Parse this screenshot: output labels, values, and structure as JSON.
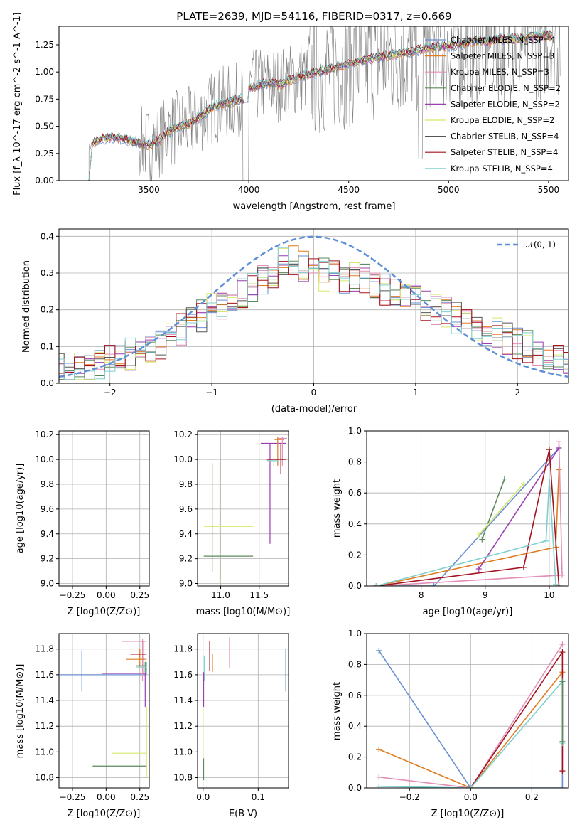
{
  "figure": {
    "title": "PLATE=2639, MJD=54116, FIBERID=0317, z=0.669"
  },
  "colors": {
    "chabrier_miles": "#6a8fd2",
    "salpeter_miles": "#e07b1f",
    "kroupa_miles": "#e28fb8",
    "chabrier_elodie": "#5c8a5c",
    "salpeter_elodie": "#9a3fb0",
    "kroupa_elodie": "#d6e86a",
    "chabrier_stelib": "#555555",
    "salpeter_stelib": "#a5121f",
    "kroupa_stelib": "#7fcfcf",
    "data_gray": "#808080",
    "normal_curve": "#5e8fd6"
  },
  "chart_data": [
    {
      "id": "spectrum",
      "type": "line",
      "xlabel": "wavelength [Angstrom, rest frame]",
      "ylabel": "Flux [f_λ 10^-17 erg cm^-2 s^-1 A^-1]",
      "xlim": [
        3050,
        5600
      ],
      "ylim": [
        0.0,
        1.42
      ],
      "xticks": [
        "3500",
        "4000",
        "4500",
        "5000",
        "5500"
      ],
      "yticks": [
        "0.00",
        "0.25",
        "0.50",
        "0.75",
        "1.00",
        "1.25"
      ],
      "grid": false,
      "legend_position": "top-right",
      "legend": [
        "Chabrier MILES, N_SSP=4",
        "Salpeter MILES, N_SSP=3",
        "Kroupa MILES, N_SSP=3",
        "Chabrier ELODIE, N_SSP=2",
        "Salpeter ELODIE, N_SSP=2",
        "Kroupa ELODIE, N_SSP=2",
        "Chabrier STELIB, N_SSP=4",
        "Salpeter STELIB, N_SSP=4",
        "Kroupa STELIB, N_SSP=4"
      ],
      "model_continuum": {
        "x": [
          3200,
          3220,
          3300,
          3380,
          3450,
          3500,
          3550,
          3600,
          3650,
          3700,
          3750,
          3800,
          3850,
          3900,
          3950,
          3990,
          4000,
          4050,
          4100,
          4150,
          4200,
          4250,
          4300,
          4350,
          4400,
          4450,
          4500,
          4550,
          4600,
          4650,
          4700,
          4750,
          4800,
          4850,
          4900,
          4950,
          5000,
          5050,
          5100,
          5150,
          5200,
          5250,
          5300,
          5350,
          5400,
          5450,
          5500
        ],
        "y": [
          0.3,
          0.35,
          0.4,
          0.38,
          0.34,
          0.33,
          0.37,
          0.45,
          0.5,
          0.52,
          0.58,
          0.65,
          0.7,
          0.72,
          0.75,
          0.73,
          0.85,
          0.88,
          0.9,
          0.88,
          0.92,
          0.95,
          0.98,
          1.0,
          1.02,
          1.05,
          1.08,
          1.1,
          1.12,
          1.14,
          1.15,
          1.17,
          1.18,
          1.2,
          1.22,
          1.23,
          1.24,
          1.25,
          1.27,
          1.29,
          1.28,
          1.3,
          1.31,
          1.3,
          1.32,
          1.33,
          1.34
        ]
      }
    },
    {
      "id": "residuals",
      "type": "line",
      "xlabel": "(data-model)/error",
      "ylabel": "Normed distribution",
      "xlim": [
        -2.5,
        2.5
      ],
      "ylim": [
        0.0,
        0.42
      ],
      "xticks": [
        "−2",
        "−1",
        "0",
        "1",
        "2"
      ],
      "yticks": [
        "0.0",
        "0.1",
        "0.2",
        "0.3",
        "0.4"
      ],
      "grid": true,
      "legend_position": "top-right",
      "legend": [
        "𝒩(0, 1)"
      ],
      "normal_reference": {
        "mean": 0,
        "sigma": 1
      },
      "histogram_envelope": {
        "x": [
          -2.5,
          -2.0,
          -1.5,
          -1.0,
          -0.5,
          -0.25,
          0.0,
          0.5,
          1.0,
          1.5,
          2.0,
          2.5
        ],
        "y": [
          0.04,
          0.06,
          0.11,
          0.2,
          0.28,
          0.34,
          0.3,
          0.28,
          0.22,
          0.17,
          0.11,
          0.06
        ]
      }
    },
    {
      "id": "age_vs_Z",
      "type": "scatter",
      "xlabel": "Z [log10(Z/Z⊙)]",
      "ylabel": "age [log10(age/yr)]",
      "xlim": [
        -0.35,
        0.32
      ],
      "ylim": [
        8.98,
        10.23
      ],
      "xticks": [
        "−0.25",
        "0.00",
        "0.25"
      ],
      "yticks": [
        "9.0",
        "9.2",
        "9.4",
        "9.6",
        "9.8",
        "10.0",
        "10.2"
      ],
      "grid": true
    },
    {
      "id": "age_vs_mass",
      "type": "scatter",
      "xlabel": "mass [log10(M/M⊙)]",
      "ylabel": "",
      "xlim": [
        10.7,
        11.88
      ],
      "ylim": [
        8.98,
        10.23
      ],
      "xticks": [
        "11.0",
        "11.5"
      ],
      "yticks": [
        "9.0",
        "9.2",
        "9.4",
        "9.6",
        "9.8",
        "10.0",
        "10.2"
      ],
      "grid": true
    },
    {
      "id": "massweight_vs_age",
      "type": "line",
      "xlabel": "age [log10(age/yr)]",
      "ylabel": "mass weight",
      "xlim": [
        7.15,
        10.3
      ],
      "ylim": [
        0.0,
        1.0
      ],
      "xticks": [
        "8",
        "9",
        "10"
      ],
      "yticks": [
        "0.0",
        "0.2",
        "0.4",
        "0.6",
        "0.8",
        "1.0"
      ],
      "grid": true,
      "series": [
        {
          "name": "Chabrier MILES",
          "color_key": "chabrier_miles",
          "x": [
            7.3,
            8.2,
            10.15
          ],
          "y": [
            0.0,
            0.0,
            0.89
          ]
        },
        {
          "name": "Salpeter MILES",
          "color_key": "salpeter_miles",
          "x": [
            7.3,
            10.1,
            10.15
          ],
          "y": [
            0.0,
            0.25,
            0.75
          ]
        },
        {
          "name": "Kroupa MILES",
          "color_key": "kroupa_miles",
          "x": [
            7.3,
            10.2,
            10.15
          ],
          "y": [
            0.0,
            0.07,
            0.93
          ]
        },
        {
          "name": "Chabrier ELODIE",
          "color_key": "chabrier_elodie",
          "x": [
            8.95,
            9.3
          ],
          "y": [
            0.3,
            0.69
          ]
        },
        {
          "name": "Salpeter ELODIE",
          "color_key": "salpeter_elodie",
          "x": [
            8.9,
            10.15
          ],
          "y": [
            0.11,
            0.89
          ]
        },
        {
          "name": "Kroupa ELODIE",
          "color_key": "kroupa_elodie",
          "x": [
            8.9,
            9.6
          ],
          "y": [
            0.33,
            0.66
          ]
        },
        {
          "name": "Salpeter STELIB",
          "color_key": "salpeter_stelib",
          "x": [
            7.3,
            9.6,
            10.0,
            10.15
          ],
          "y": [
            0.0,
            0.12,
            0.88,
            0.0
          ]
        },
        {
          "name": "Kroupa STELIB",
          "color_key": "kroupa_stelib",
          "x": [
            7.3,
            9.95,
            10.0,
            10.1
          ],
          "y": [
            0.0,
            0.29,
            0.69,
            0.01
          ]
        }
      ]
    },
    {
      "id": "mass_vs_Z",
      "type": "scatter",
      "xlabel": "Z [log10(Z/Z⊙)]",
      "ylabel": "mass [log10(M/M⊙)]",
      "xlim": [
        -0.35,
        0.32
      ],
      "ylim": [
        10.72,
        11.92
      ],
      "xticks": [
        "−0.25",
        "0.00",
        "0.25"
      ],
      "yticks": [
        "10.8",
        "11.0",
        "11.2",
        "11.4",
        "11.6",
        "11.8"
      ],
      "grid": true
    },
    {
      "id": "mass_vs_ebv",
      "type": "scatter",
      "xlabel": "E(B-V)",
      "ylabel": "",
      "xlim": [
        -0.01,
        0.155
      ],
      "ylim": [
        10.72,
        11.92
      ],
      "xticks": [
        "0.0",
        "0.1"
      ],
      "yticks": [
        "10.8",
        "11.0",
        "11.2",
        "11.4",
        "11.6",
        "11.8"
      ],
      "grid": true
    },
    {
      "id": "massweight_vs_Z",
      "type": "line",
      "xlabel": "Z [log10(Z/Z⊙)]",
      "ylabel": "mass weight",
      "xlim": [
        -0.34,
        0.32
      ],
      "ylim": [
        0.0,
        1.0
      ],
      "xticks": [
        "−0.2",
        "0.0",
        "0.2"
      ],
      "yticks": [
        "0.0",
        "0.2",
        "0.4",
        "0.6",
        "0.8",
        "1.0"
      ],
      "grid": true,
      "series": [
        {
          "name": "Chabrier MILES",
          "color_key": "chabrier_miles",
          "x": [
            -0.3,
            0.0,
            0.3,
            0.3
          ],
          "y": [
            0.89,
            0.0,
            0.0,
            0.69
          ]
        },
        {
          "name": "Salpeter MILES",
          "color_key": "salpeter_miles",
          "x": [
            -0.3,
            0.0,
            0.3
          ],
          "y": [
            0.25,
            0.0,
            0.75
          ]
        },
        {
          "name": "Kroupa MILES",
          "color_key": "kroupa_miles",
          "x": [
            -0.3,
            0.0,
            0.3
          ],
          "y": [
            0.07,
            0.0,
            0.93
          ]
        },
        {
          "name": "Salpeter STELIB",
          "color_key": "salpeter_stelib",
          "x": [
            0.0,
            0.3,
            0.3
          ],
          "y": [
            0.0,
            0.88,
            0.11
          ]
        },
        {
          "name": "Kroupa STELIB",
          "color_key": "kroupa_stelib",
          "x": [
            -0.3,
            0.0,
            0.3,
            0.3
          ],
          "y": [
            0.01,
            0.0,
            0.69,
            0.29
          ]
        },
        {
          "name": "Chabrier ELODIE",
          "color_key": "chabrier_elodie",
          "x": [
            0.3,
            0.3
          ],
          "y": [
            0.3,
            0.69
          ]
        }
      ]
    }
  ]
}
